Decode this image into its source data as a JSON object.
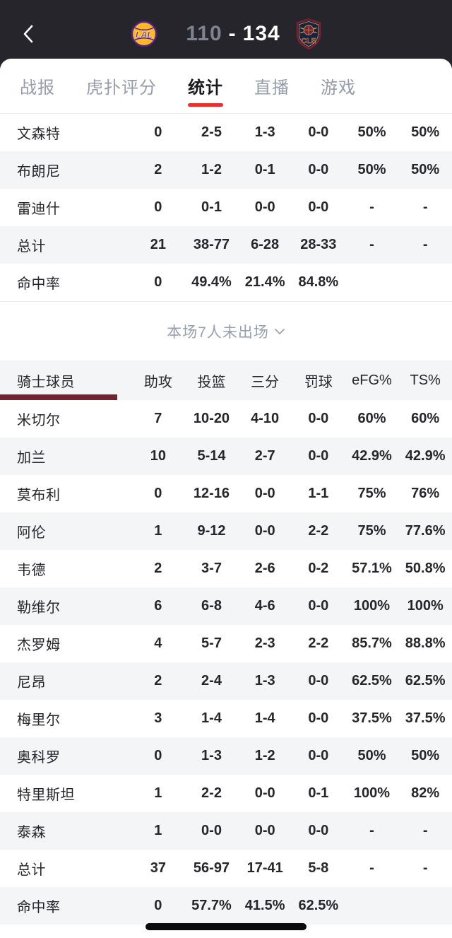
{
  "header": {
    "back_icon": "chevron-left",
    "home_team": {
      "abbr": "LAL",
      "score": "110"
    },
    "away_team": {
      "abbr": "CLE",
      "score": "134"
    },
    "score_separator": "-"
  },
  "tabs": [
    {
      "label": "战报",
      "active": false
    },
    {
      "label": "虎扑评分",
      "active": false
    },
    {
      "label": "统计",
      "active": true
    },
    {
      "label": "直播",
      "active": false
    },
    {
      "label": "游戏",
      "active": false
    }
  ],
  "lakers_table": {
    "rows": [
      {
        "name": "文森特",
        "cols": [
          "0",
          "2-5",
          "1-3",
          "0-0",
          "50%",
          "50%"
        ]
      },
      {
        "name": "布朗尼",
        "cols": [
          "2",
          "1-2",
          "0-1",
          "0-0",
          "50%",
          "50%"
        ]
      },
      {
        "name": "雷迪什",
        "cols": [
          "0",
          "0-1",
          "0-0",
          "0-0",
          "-",
          "-"
        ]
      },
      {
        "name": "总计",
        "cols": [
          "21",
          "38-77",
          "6-28",
          "28-33",
          "-",
          "-"
        ]
      },
      {
        "name": "命中率",
        "cols": [
          "0",
          "49.4%",
          "21.4%",
          "84.8%",
          "",
          ""
        ]
      }
    ]
  },
  "bench_note": {
    "label": "本场7人未出场",
    "icon": "chevron-down"
  },
  "cavs_table": {
    "header": {
      "name_col": "骑士球员",
      "cols": [
        "助攻",
        "投篮",
        "三分",
        "罚球",
        "eFG%",
        "TS%"
      ]
    },
    "rows": [
      {
        "name": "米切尔",
        "cols": [
          "7",
          "10-20",
          "4-10",
          "0-0",
          "60%",
          "60%"
        ]
      },
      {
        "name": "加兰",
        "cols": [
          "10",
          "5-14",
          "2-7",
          "0-0",
          "42.9%",
          "42.9%"
        ]
      },
      {
        "name": "莫布利",
        "cols": [
          "0",
          "12-16",
          "0-0",
          "1-1",
          "75%",
          "76%"
        ]
      },
      {
        "name": "阿伦",
        "cols": [
          "1",
          "9-12",
          "0-0",
          "2-2",
          "75%",
          "77.6%"
        ]
      },
      {
        "name": "韦德",
        "cols": [
          "2",
          "3-7",
          "2-6",
          "0-2",
          "57.1%",
          "50.8%"
        ]
      },
      {
        "name": "勒维尔",
        "cols": [
          "6",
          "6-8",
          "4-6",
          "0-0",
          "100%",
          "100%"
        ]
      },
      {
        "name": "杰罗姆",
        "cols": [
          "4",
          "5-7",
          "2-3",
          "2-2",
          "85.7%",
          "88.8%"
        ]
      },
      {
        "name": "尼昂",
        "cols": [
          "2",
          "2-4",
          "1-3",
          "0-0",
          "62.5%",
          "62.5%"
        ]
      },
      {
        "name": "梅里尔",
        "cols": [
          "3",
          "1-4",
          "1-4",
          "0-0",
          "37.5%",
          "37.5%"
        ]
      },
      {
        "name": "奥科罗",
        "cols": [
          "0",
          "1-3",
          "1-2",
          "0-0",
          "50%",
          "50%"
        ]
      },
      {
        "name": "特里斯坦",
        "cols": [
          "1",
          "2-2",
          "0-0",
          "0-1",
          "100%",
          "82%"
        ]
      },
      {
        "name": "泰森",
        "cols": [
          "1",
          "0-0",
          "0-0",
          "0-0",
          "-",
          "-"
        ]
      },
      {
        "name": "总计",
        "cols": [
          "37",
          "56-97",
          "17-41",
          "5-8",
          "-",
          "-"
        ]
      },
      {
        "name": "命中率",
        "cols": [
          "0",
          "57.7%",
          "41.5%",
          "62.5%",
          "",
          ""
        ]
      }
    ]
  },
  "colors": {
    "topbar_bg": "#25252b",
    "tab_active_underline": "#e8312f",
    "cavs_accent_bar": "#6d2630",
    "row_stripe": "#f4f5f7",
    "score_home_dim": "#7f838d",
    "lakers_gold": "#fdb927",
    "lakers_purple": "#552583",
    "cavs_navy": "#16233f",
    "cavs_wine": "#7a2035"
  }
}
